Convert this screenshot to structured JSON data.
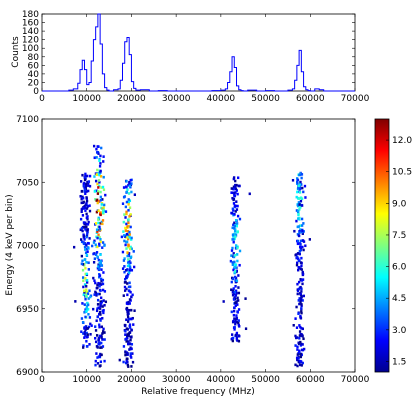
{
  "chart_data": [
    {
      "type": "line",
      "drawstyle": "steps",
      "xlim": [
        0,
        70000
      ],
      "ylim": [
        0,
        180
      ],
      "xticks": [
        "0",
        "10000",
        "20000",
        "30000",
        "40000",
        "50000",
        "60000",
        "70000"
      ],
      "yticks": [
        "0",
        "20",
        "40",
        "60",
        "80",
        "100",
        "120",
        "140",
        "160",
        "180"
      ],
      "ylabel": "Counts",
      "xlabel": "",
      "line_color": "#0000ff",
      "series": [
        {
          "x": [
            5000,
            6000,
            7000,
            8000,
            8500,
            9000,
            9500,
            10000,
            10500,
            11000,
            11500,
            12000,
            12500,
            13000,
            13500,
            14000,
            14500,
            15000,
            16000,
            17000,
            17500,
            18000,
            18500,
            19000,
            19500,
            20000,
            20500,
            21000,
            22000,
            24000,
            26000,
            28000,
            30000,
            32000,
            34000,
            36000,
            38000,
            40000,
            41000,
            41500,
            42000,
            42500,
            43000,
            43500,
            44000,
            44500,
            45000,
            46000,
            48000,
            50000,
            52000,
            54000,
            55000,
            56000,
            56500,
            57000,
            57500,
            58000,
            58500,
            59000,
            59500,
            60000,
            61000,
            62000,
            63000
          ],
          "y": [
            0,
            2,
            5,
            18,
            50,
            72,
            50,
            15,
            20,
            70,
            120,
            150,
            180,
            110,
            40,
            8,
            2,
            0,
            3,
            5,
            25,
            65,
            115,
            125,
            85,
            22,
            6,
            2,
            3,
            0,
            1,
            0,
            0,
            0,
            0,
            0,
            1,
            2,
            5,
            20,
            45,
            80,
            55,
            12,
            3,
            1,
            0,
            2,
            0,
            1,
            0,
            0,
            2,
            5,
            25,
            60,
            95,
            45,
            10,
            3,
            1,
            0,
            5,
            3,
            0
          ]
        }
      ]
    },
    {
      "type": "heatmap",
      "xlim": [
        0,
        70000
      ],
      "ylim": [
        6900,
        7100
      ],
      "xticks": [
        "0",
        "10000",
        "20000",
        "30000",
        "40000",
        "50000",
        "60000",
        "70000"
      ],
      "yticks": [
        "6900",
        "6950",
        "7000",
        "7050",
        "7100"
      ],
      "xlabel": "Relative frequency (MHz)",
      "ylabel": "Energy (4 keV per bin)",
      "colorbar": {
        "vmin": 1,
        "vmax": 13,
        "ticks": [
          "1.5",
          "3.0",
          "4.5",
          "6.0",
          "7.5",
          "9.0",
          "10.5",
          "12.0"
        ],
        "colormap": "jet"
      },
      "clusters": [
        {
          "center_x": 9500,
          "x_spread": 1200,
          "ymin": 6920,
          "ymax": 7060,
          "peak_y": 6970,
          "peak_value": 8
        },
        {
          "center_x": 12500,
          "x_spread": 1400,
          "ymin": 6905,
          "ymax": 7080,
          "peak_y": 7030,
          "peak_value": 13
        },
        {
          "center_x": 19000,
          "x_spread": 1200,
          "ymin": 6905,
          "ymax": 7055,
          "peak_y": 7015,
          "peak_value": 10
        },
        {
          "center_x": 43000,
          "x_spread": 1100,
          "ymin": 6925,
          "ymax": 7055,
          "peak_y": 7000,
          "peak_value": 6
        },
        {
          "center_x": 57500,
          "x_spread": 1100,
          "ymin": 6905,
          "ymax": 7060,
          "peak_y": 7040,
          "peak_value": 6
        }
      ]
    }
  ]
}
